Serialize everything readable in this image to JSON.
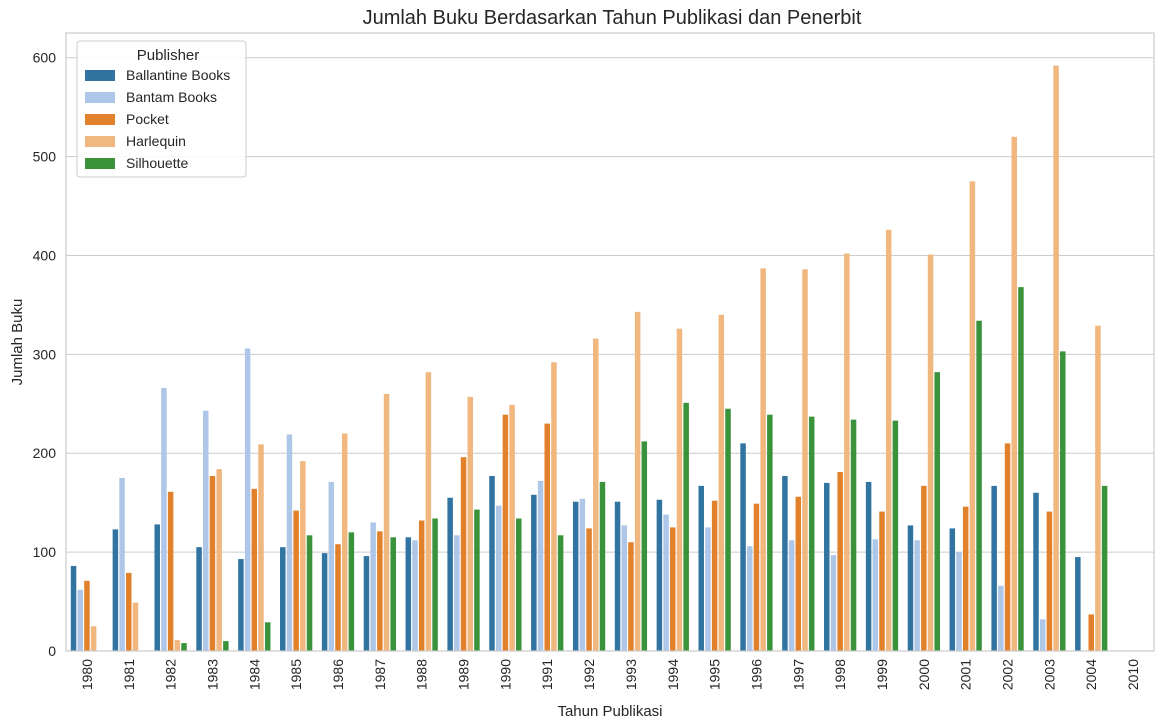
{
  "chart_data": {
    "type": "bar",
    "title": "Jumlah Buku Berdasarkan Tahun Publikasi dan Penerbit",
    "xlabel": "Tahun Publikasi",
    "ylabel": "Jumlah Buku",
    "ylim": [
      0,
      625
    ],
    "yticks": [
      0,
      100,
      200,
      300,
      400,
      500,
      600
    ],
    "grid": true,
    "legend": {
      "title": "Publisher",
      "placement": "top-left"
    },
    "categories": [
      "1980",
      "1981",
      "1982",
      "1983",
      "1984",
      "1985",
      "1986",
      "1987",
      "1988",
      "1989",
      "1990",
      "1991",
      "1992",
      "1993",
      "1994",
      "1995",
      "1996",
      "1997",
      "1998",
      "1999",
      "2000",
      "2001",
      "2002",
      "2003",
      "2004",
      "2010"
    ],
    "series": [
      {
        "name": "Ballantine Books",
        "color": "#3274a1",
        "values": [
          86,
          123,
          128,
          105,
          93,
          105,
          99,
          96,
          115,
          155,
          177,
          158,
          151,
          151,
          153,
          167,
          210,
          177,
          170,
          171,
          127,
          124,
          167,
          160,
          95,
          0
        ]
      },
      {
        "name": "Bantam Books",
        "color": "#aec7e8",
        "values": [
          62,
          175,
          266,
          243,
          306,
          219,
          171,
          130,
          112,
          117,
          147,
          172,
          154,
          127,
          138,
          125,
          106,
          112,
          97,
          113,
          112,
          100,
          66,
          32,
          0,
          0
        ]
      },
      {
        "name": "Pocket",
        "color": "#e1812c",
        "values": [
          71,
          79,
          161,
          177,
          164,
          142,
          108,
          121,
          132,
          196,
          239,
          230,
          124,
          110,
          125,
          152,
          149,
          156,
          181,
          141,
          167,
          146,
          210,
          141,
          37,
          0
        ]
      },
      {
        "name": "Harlequin",
        "color": "#f0b77f",
        "values": [
          25,
          49,
          11,
          184,
          209,
          192,
          220,
          260,
          282,
          257,
          249,
          292,
          316,
          343,
          326,
          340,
          387,
          386,
          402,
          426,
          401,
          475,
          520,
          592,
          329,
          0
        ]
      },
      {
        "name": "Silhouette",
        "color": "#3a923a",
        "values": [
          0,
          0,
          8,
          10,
          29,
          117,
          120,
          115,
          134,
          143,
          134,
          117,
          171,
          212,
          251,
          245,
          239,
          237,
          234,
          233,
          282,
          334,
          368,
          303,
          167,
          0
        ]
      }
    ]
  }
}
